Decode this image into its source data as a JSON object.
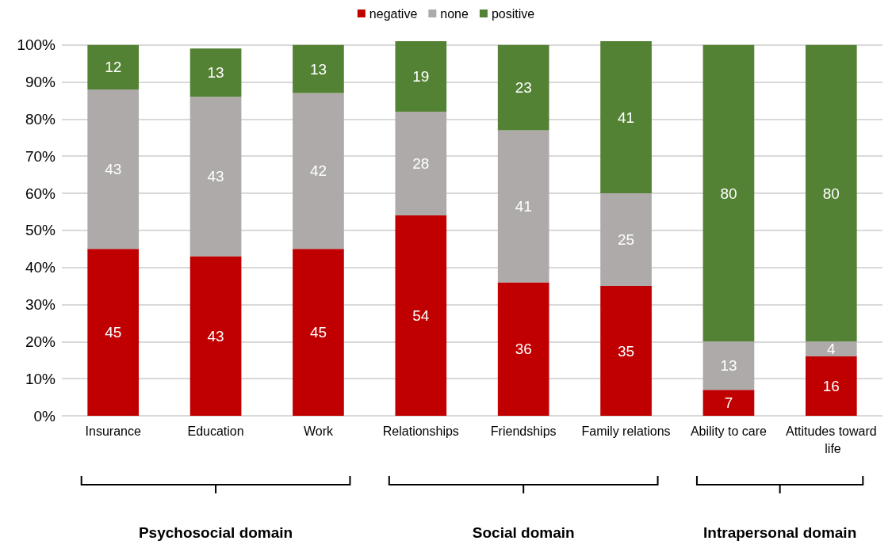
{
  "chart_data": {
    "type": "bar",
    "stacked": true,
    "categories": [
      "Insurance",
      "Education",
      "Work",
      "Relationships",
      "Friendships",
      "Family relations",
      "Ability to care",
      "Attitudes toward life"
    ],
    "series": [
      {
        "name": "negative",
        "color": "#c00000",
        "values": [
          45,
          43,
          45,
          54,
          36,
          35,
          7,
          16
        ]
      },
      {
        "name": "none",
        "color": "#aeaaaa",
        "values": [
          43,
          43,
          42,
          28,
          41,
          25,
          13,
          4
        ]
      },
      {
        "name": "positive",
        "color": "#548235",
        "values": [
          12,
          13,
          13,
          19,
          23,
          41,
          80,
          80
        ]
      }
    ],
    "data_labels": true,
    "ylim": [
      0,
      101
    ],
    "yticks": [
      {
        "value": 0,
        "label": "0%"
      },
      {
        "value": 10,
        "label": "10%"
      },
      {
        "value": 20,
        "label": "20%"
      },
      {
        "value": 30,
        "label": "30%"
      },
      {
        "value": 40,
        "label": "40%"
      },
      {
        "value": 50,
        "label": "50%"
      },
      {
        "value": 60,
        "label": "60%"
      },
      {
        "value": 70,
        "label": "70%"
      },
      {
        "value": 80,
        "label": "80%"
      },
      {
        "value": 90,
        "label": "90%"
      },
      {
        "value": 100,
        "label": "100%"
      }
    ],
    "grid": "y",
    "legend": "top",
    "annotations": [
      "Psychosocial domain",
      "Social domain",
      "Intrapersonal domain"
    ]
  }
}
